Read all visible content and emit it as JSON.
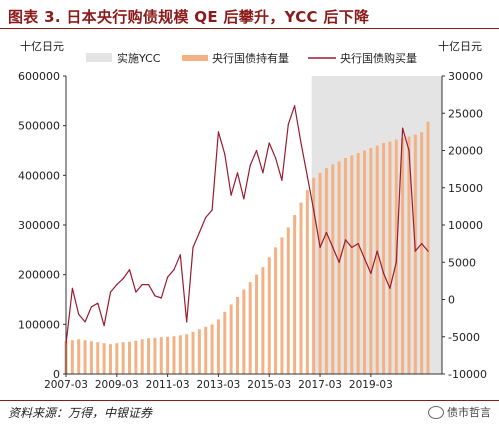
{
  "header": {
    "title": "图表 3. 日本央行购债规模 QE 后攀升，YCC 后下降"
  },
  "footer": {
    "source": "资料来源：万得，中银证券",
    "watermark": "债市哲言"
  },
  "colors": {
    "bar": "#f4b183",
    "line": "#9b1b30",
    "shade": "#e4e4e4",
    "axis": "#333333",
    "title": "#8b1a1a"
  },
  "icons": {
    "watermark": "wechat-icon"
  },
  "chart_data": {
    "type": "bar+line",
    "y_left_unit": "十亿日元",
    "y_right_unit": "十亿日元",
    "y_left_ticks": [
      0,
      100000,
      200000,
      300000,
      400000,
      500000,
      600000
    ],
    "y_left_tick_labels": [
      "0",
      "100000",
      "200000",
      "300000",
      "400000",
      "500000",
      "600000"
    ],
    "y_right_ticks": [
      -10000,
      -5000,
      0,
      5000,
      10000,
      15000,
      20000,
      25000,
      30000
    ],
    "y_right_tick_labels": [
      "-10000",
      "-5000",
      "0",
      "5000",
      "10000",
      "15000",
      "20000",
      "25000",
      "30000"
    ],
    "ylim_left": [
      0,
      600000
    ],
    "ylim_right": [
      -10000,
      30000
    ],
    "x_range": [
      2007.0,
      2021.8
    ],
    "x_ticks": [
      2007.0,
      2009.0,
      2011.0,
      2013.0,
      2015.0,
      2017.0,
      2019.0
    ],
    "x_tick_labels": [
      "2007-03",
      "2009-03",
      "2011-03",
      "2013-03",
      "2015-03",
      "2017-03",
      "2019-03"
    ],
    "shaded_region": {
      "label": "实施YCC",
      "start": 2016.67,
      "end": 2021.8
    },
    "legend": [
      "实施YCC",
      "央行国债持有量",
      "央行国债购买量"
    ],
    "holdings": {
      "name": "央行国债持有量",
      "x": [
        2007.0,
        2007.25,
        2007.5,
        2007.75,
        2008.0,
        2008.25,
        2008.5,
        2008.75,
        2009.0,
        2009.25,
        2009.5,
        2009.75,
        2010.0,
        2010.25,
        2010.5,
        2010.75,
        2011.0,
        2011.25,
        2011.5,
        2011.75,
        2012.0,
        2012.25,
        2012.5,
        2012.75,
        2013.0,
        2013.25,
        2013.5,
        2013.75,
        2014.0,
        2014.25,
        2014.5,
        2014.75,
        2015.0,
        2015.25,
        2015.5,
        2015.75,
        2016.0,
        2016.25,
        2016.5,
        2016.75,
        2017.0,
        2017.25,
        2017.5,
        2017.75,
        2018.0,
        2018.25,
        2018.5,
        2018.75,
        2019.0,
        2019.25,
        2019.5,
        2019.75,
        2020.0,
        2020.25,
        2020.5,
        2020.75,
        2021.0,
        2021.25
      ],
      "values": [
        66000,
        68000,
        70000,
        68000,
        66000,
        64000,
        62000,
        60000,
        62000,
        64000,
        65000,
        67000,
        70000,
        72000,
        73000,
        74000,
        75000,
        76000,
        78000,
        80000,
        85000,
        90000,
        95000,
        100000,
        110000,
        125000,
        140000,
        155000,
        170000,
        185000,
        200000,
        215000,
        235000,
        255000,
        275000,
        295000,
        320000,
        345000,
        370000,
        395000,
        405000,
        415000,
        422000,
        428000,
        435000,
        440000,
        445000,
        450000,
        455000,
        460000,
        465000,
        468000,
        472000,
        475000,
        478000,
        482000,
        487000,
        508000
      ]
    },
    "purchases": {
      "name": "央行国债购买量",
      "x": [
        2007.0,
        2007.25,
        2007.5,
        2007.75,
        2008.0,
        2008.25,
        2008.5,
        2008.75,
        2009.0,
        2009.25,
        2009.5,
        2009.75,
        2010.0,
        2010.25,
        2010.5,
        2010.75,
        2011.0,
        2011.25,
        2011.5,
        2011.75,
        2012.0,
        2012.25,
        2012.5,
        2012.75,
        2013.0,
        2013.25,
        2013.5,
        2013.75,
        2014.0,
        2014.25,
        2014.5,
        2014.75,
        2015.0,
        2015.25,
        2015.5,
        2015.75,
        2016.0,
        2016.25,
        2016.5,
        2016.75,
        2017.0,
        2017.25,
        2017.5,
        2017.75,
        2018.0,
        2018.25,
        2018.5,
        2018.75,
        2019.0,
        2019.25,
        2019.5,
        2019.75,
        2020.0,
        2020.25,
        2020.5,
        2020.75,
        2021.0,
        2021.25
      ],
      "values": [
        -6000,
        1500,
        -2000,
        -3000,
        -1000,
        -500,
        -3500,
        1000,
        2000,
        2800,
        4000,
        1000,
        2000,
        2000,
        500,
        200,
        3000,
        4000,
        6000,
        -3000,
        7000,
        9000,
        11000,
        12000,
        22500,
        19500,
        14000,
        17000,
        13500,
        18000,
        20000,
        17000,
        21000,
        19000,
        16000,
        23500,
        26000,
        21000,
        16500,
        12000,
        7000,
        9000,
        7000,
        5000,
        8000,
        7000,
        7500,
        5500,
        3500,
        6500,
        3500,
        1500,
        5000,
        23000,
        20000,
        6500,
        7500,
        6500
      ]
    }
  }
}
